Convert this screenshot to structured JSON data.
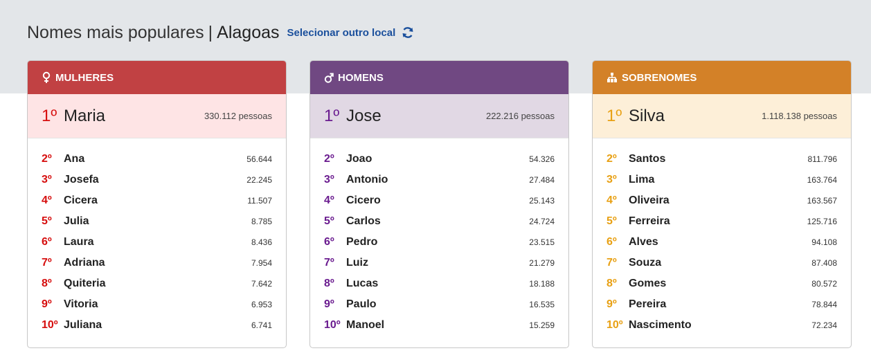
{
  "header": {
    "title": "Nomes mais populares",
    "separator": "|",
    "location": "Alagoas",
    "select_link": "Selecionar outro local",
    "refresh_icon": "refresh-icon"
  },
  "colors": {
    "female_head": "#c14143",
    "female_accent": "#d60e0e",
    "female_bg": "#fee4e5",
    "male_head": "#704882",
    "male_accent": "#6a1b8f",
    "male_bg": "#e1d8e4",
    "surname_head": "#d38128",
    "surname_accent": "#e8a013",
    "surname_bg": "#fdefd8",
    "link": "#1a4f9c"
  },
  "women": {
    "heading": "MULHERES",
    "icon": "female-symbol-icon",
    "top": {
      "rank": "1º",
      "name": "Maria",
      "count": "330.112 pessoas"
    },
    "rows": [
      {
        "rank": "2º",
        "name": "Ana",
        "count": "56.644"
      },
      {
        "rank": "3º",
        "name": "Josefa",
        "count": "22.245"
      },
      {
        "rank": "4º",
        "name": "Cicera",
        "count": "11.507"
      },
      {
        "rank": "5º",
        "name": "Julia",
        "count": "8.785"
      },
      {
        "rank": "6º",
        "name": "Laura",
        "count": "8.436"
      },
      {
        "rank": "7º",
        "name": "Adriana",
        "count": "7.954"
      },
      {
        "rank": "8º",
        "name": "Quiteria",
        "count": "7.642"
      },
      {
        "rank": "9º",
        "name": "Vitoria",
        "count": "6.953"
      },
      {
        "rank": "10º",
        "name": "Juliana",
        "count": "6.741"
      }
    ]
  },
  "men": {
    "heading": "HOMENS",
    "icon": "male-symbol-icon",
    "top": {
      "rank": "1º",
      "name": "Jose",
      "count": "222.216 pessoas"
    },
    "rows": [
      {
        "rank": "2º",
        "name": "Joao",
        "count": "54.326"
      },
      {
        "rank": "3º",
        "name": "Antonio",
        "count": "27.484"
      },
      {
        "rank": "4º",
        "name": "Cicero",
        "count": "25.143"
      },
      {
        "rank": "5º",
        "name": "Carlos",
        "count": "24.724"
      },
      {
        "rank": "6º",
        "name": "Pedro",
        "count": "23.515"
      },
      {
        "rank": "7º",
        "name": "Luiz",
        "count": "21.279"
      },
      {
        "rank": "8º",
        "name": "Lucas",
        "count": "18.188"
      },
      {
        "rank": "9º",
        "name": "Paulo",
        "count": "16.535"
      },
      {
        "rank": "10º",
        "name": "Manoel",
        "count": "15.259"
      }
    ]
  },
  "surnames": {
    "heading": "SOBRENOMES",
    "icon": "family-tree-icon",
    "top": {
      "rank": "1º",
      "name": "Silva",
      "count": "1.118.138 pessoas"
    },
    "rows": [
      {
        "rank": "2º",
        "name": "Santos",
        "count": "811.796"
      },
      {
        "rank": "3º",
        "name": "Lima",
        "count": "163.764"
      },
      {
        "rank": "4º",
        "name": "Oliveira",
        "count": "163.567"
      },
      {
        "rank": "5º",
        "name": "Ferreira",
        "count": "125.716"
      },
      {
        "rank": "6º",
        "name": "Alves",
        "count": "94.108"
      },
      {
        "rank": "7º",
        "name": "Souza",
        "count": "87.408"
      },
      {
        "rank": "8º",
        "name": "Gomes",
        "count": "80.572"
      },
      {
        "rank": "9º",
        "name": "Pereira",
        "count": "78.844"
      },
      {
        "rank": "10º",
        "name": "Nascimento",
        "count": "72.234"
      }
    ]
  }
}
